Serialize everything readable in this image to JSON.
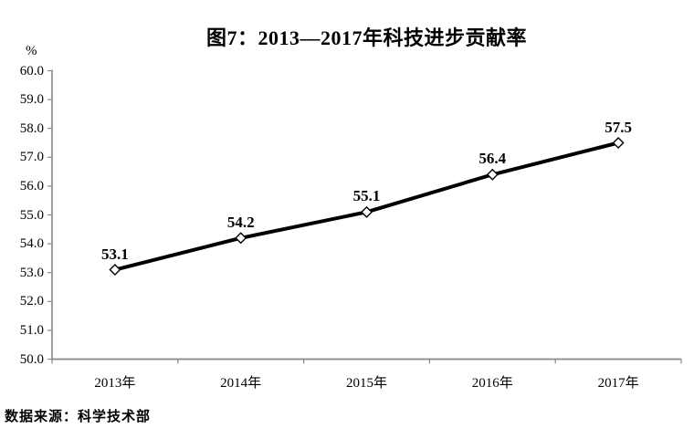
{
  "figure": {
    "title": "图7：2013—2017年科技进步贡献率",
    "y_unit": "%",
    "source": "数据来源：科学技术部"
  },
  "chart_data": {
    "type": "line",
    "title": "图7：2013—2017年科技进步贡献率",
    "categories": [
      "2013年",
      "2014年",
      "2015年",
      "2016年",
      "2017年"
    ],
    "values": [
      53.1,
      54.2,
      55.1,
      56.4,
      57.5
    ],
    "data_labels": [
      "53.1",
      "54.2",
      "55.1",
      "56.4",
      "57.5"
    ],
    "xlabel": "",
    "ylabel": "%",
    "ylim": [
      50.0,
      60.0
    ],
    "ytick_step": 1.0,
    "ytick_labels": [
      "60.0",
      "59.0",
      "58.0",
      "57.0",
      "56.0",
      "55.0",
      "54.0",
      "53.0",
      "52.0",
      "51.0",
      "50.0"
    ],
    "grid": false,
    "legend": "none",
    "line_color": "#000000",
    "line_width": 4,
    "marker_style": "open-diamond",
    "marker_fill": "#ffffff",
    "marker_stroke": "#000000",
    "axis_color": "#878787",
    "text_color": "#000000"
  }
}
